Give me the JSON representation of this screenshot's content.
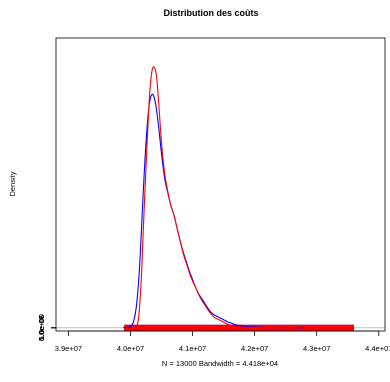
{
  "chart_data": {
    "type": "line",
    "title": "Distribution des coûts",
    "xlabel": "N = 13000   Bandwidth = 4.418e+04",
    "ylabel": "Density",
    "xlim": [
      38800000,
      44100000
    ],
    "ylim": [
      -20000000000000000,
      1800000000000000000
    ],
    "x_ticks": [
      39000000,
      40000000,
      41000000,
      42000000,
      43000000,
      44000000
    ],
    "x_tick_labels": [
      "3.9e+07",
      "4.0e+07",
      "4.1e+07",
      "4.2e+07",
      "4.3e+07",
      "4.4e+07"
    ],
    "y_ticks": [
      0,
      5e-07,
      1e-06,
      1.5e-06
    ],
    "y_tick_labels": [
      "0.0e+00",
      "5.0e-07",
      "1.0e-06",
      "1.5e-06"
    ],
    "y_scale_factor": 1e-18,
    "grid": false,
    "legend": "none",
    "zero_line_color": "#bfbfbf",
    "rug": {
      "x_min": 39900000,
      "x_max": 43600000
    },
    "series": [
      {
        "color": "#0000ff",
        "rug_color": "#0000ff",
        "x": [
          39880000,
          39950000,
          40000000,
          40050000,
          40100000,
          40150000,
          40200000,
          40250000,
          40300000,
          40350000,
          40400000,
          40450000,
          40500000,
          40550000,
          40600000,
          40650000,
          40700000,
          40750000,
          40800000,
          40850000,
          40900000,
          40950000,
          41000000,
          41050000,
          41100000,
          41150000,
          41200000,
          41250000,
          41300000,
          41350000,
          41400000,
          41450000,
          41500000,
          41550000,
          41600000,
          41650000,
          41700000,
          41800000,
          41900000,
          42000000,
          42100000,
          42200000,
          42300000,
          42500000,
          42800000
        ],
        "y": [
          0,
          2000000000000000,
          8000000000000000,
          40000000000000000,
          150000000000000000,
          400000000000000000,
          800000000000000000,
          1150000000000000000,
          1380000000000000000,
          1450000000000000000,
          1400000000000000000,
          1260000000000000000,
          1080000000000000000,
          930000000000000000,
          840000000000000000,
          760000000000000000,
          700000000000000000,
          620000000000000000,
          540000000000000000,
          470000000000000000,
          410000000000000000,
          350000000000000000,
          300000000000000000,
          250000000000000000,
          210000000000000000,
          180000000000000000,
          150000000000000000,
          120000000000000000,
          95000000000000000,
          80000000000000000,
          70000000000000000,
          60000000000000000,
          50000000000000000,
          40000000000000000,
          32000000000000000,
          25000000000000000,
          18000000000000000,
          10000000000000000,
          7000000000000000,
          5000000000000000,
          3000000000000000,
          1500000000000000,
          800000000000000,
          300000000000000,
          0
        ]
      },
      {
        "color": "#ff0000",
        "rug_color": "#ff0000",
        "x": [
          40050000,
          40100000,
          40130000,
          40150000,
          40180000,
          40200000,
          40250000,
          40300000,
          40340000,
          40380000,
          40420000,
          40450000,
          40500000,
          40550000,
          40600000,
          40650000,
          40700000,
          40750000,
          40800000,
          40850000,
          40900000,
          40950000,
          41000000,
          41050000,
          41100000,
          41150000,
          41200000,
          41250000,
          41300000,
          41350000,
          41400000,
          41450000,
          41500000,
          41550000,
          41600000,
          41700000,
          41800000,
          41900000,
          42000000,
          42100000,
          42200000,
          42400000,
          42700000
        ],
        "y": [
          0,
          8000000000000000,
          60000000000000000,
          150000000000000000,
          350000000000000000,
          550000000000000000,
          1000000000000000000,
          1400000000000000000,
          1580000000000000000,
          1620000000000000000,
          1560000000000000000,
          1420000000000000000,
          1150000000000000000,
          960000000000000000,
          850000000000000000,
          760000000000000000,
          700000000000000000,
          620000000000000000,
          540000000000000000,
          460000000000000000,
          400000000000000000,
          340000000000000000,
          290000000000000000,
          250000000000000000,
          205000000000000000,
          170000000000000000,
          140000000000000000,
          110000000000000000,
          85000000000000000,
          65000000000000000,
          55000000000000000,
          45000000000000000,
          35000000000000000,
          25000000000000000,
          18000000000000000,
          10000000000000000,
          5000000000000000,
          3000000000000000,
          2000000000000000,
          1000000000000000,
          500000000000000,
          200000000000000,
          0
        ]
      }
    ]
  }
}
